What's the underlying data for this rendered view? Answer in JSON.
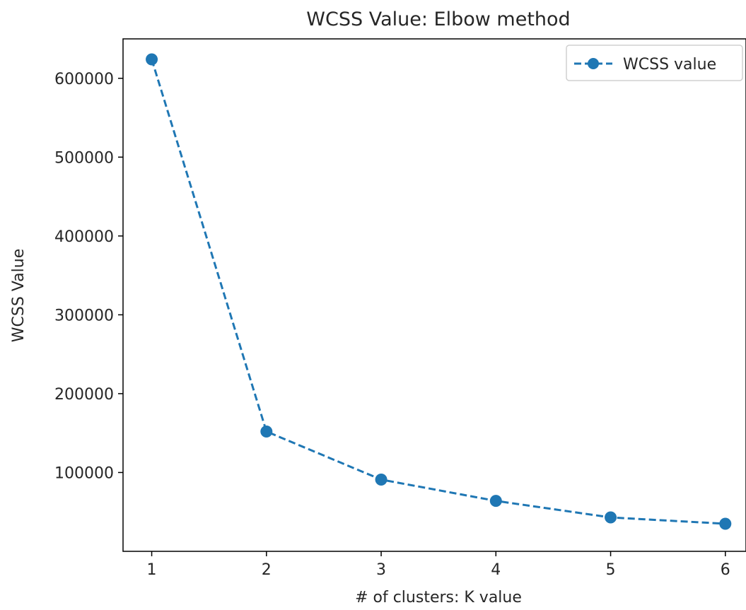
{
  "chart_data": {
    "type": "line",
    "title": "WCSS Value: Elbow method",
    "xlabel": "# of clusters: K value",
    "ylabel": "WCSS Value",
    "x": [
      1,
      2,
      3,
      4,
      5,
      6
    ],
    "xticks": [
      "1",
      "2",
      "3",
      "4",
      "5",
      "6"
    ],
    "yticks": [
      "100000",
      "200000",
      "300000",
      "400000",
      "500000",
      "600000"
    ],
    "ytick_values": [
      100000,
      200000,
      300000,
      400000,
      500000,
      600000
    ],
    "xlim": [
      0.75,
      6.18
    ],
    "ylim": [
      0,
      650000
    ],
    "grid": false,
    "legend_position": "top-right",
    "series": [
      {
        "name": "WCSS value",
        "values": [
          624000,
          152000,
          91000,
          64000,
          43000,
          35000
        ],
        "color": "#1f77b4",
        "line_style": "dashed",
        "marker": "circle"
      }
    ]
  }
}
